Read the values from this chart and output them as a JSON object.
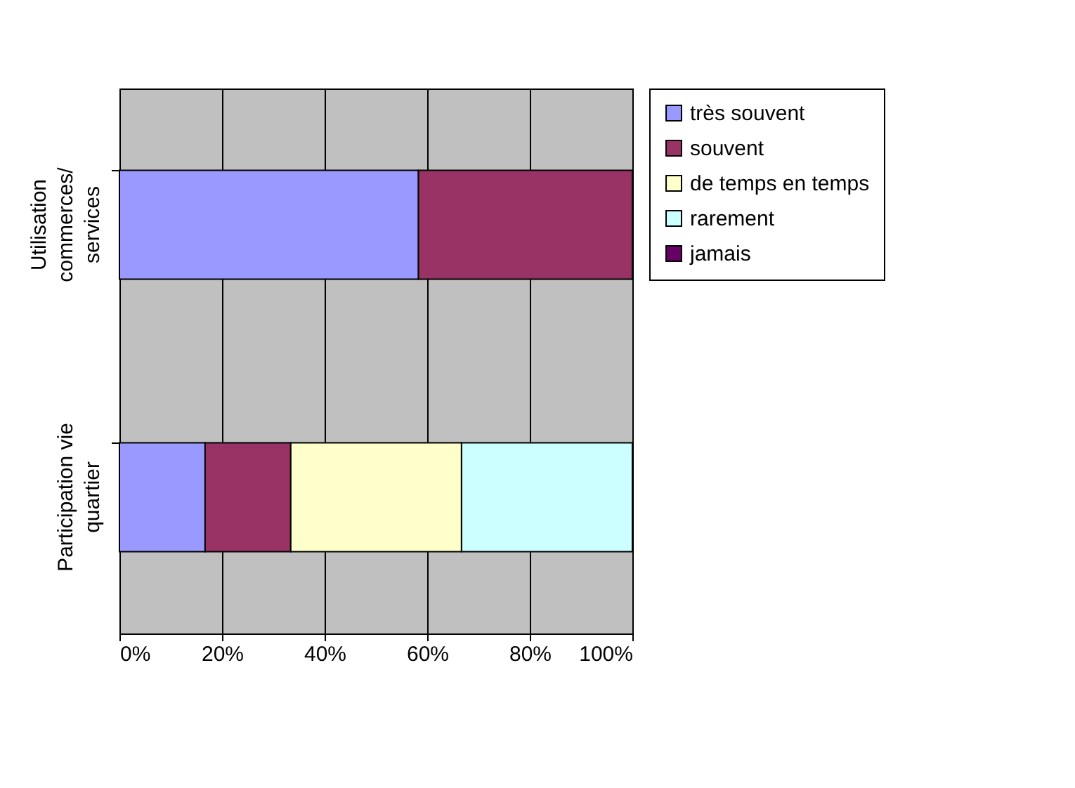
{
  "chart_data": {
    "type": "bar",
    "orientation": "horizontal",
    "stacked": true,
    "categories": [
      "Utilisation\ncommerces/\nservices",
      "Participation vie\nquartier"
    ],
    "series": [
      {
        "name": "très souvent",
        "color": "#9999ff",
        "values": [
          58.3,
          16.7
        ]
      },
      {
        "name": "souvent",
        "color": "#993366",
        "values": [
          41.7,
          16.7
        ]
      },
      {
        "name": "de temps en temps",
        "color": "#ffffcc",
        "values": [
          null,
          33.3
        ]
      },
      {
        "name": "rarement",
        "color": "#ccffff",
        "values": [
          null,
          33.3
        ]
      },
      {
        "name": "jamais",
        "color": "#660066",
        "values": [
          null,
          null
        ]
      }
    ],
    "xlim": [
      0,
      100
    ],
    "xticks": [
      {
        "value": 0,
        "label": "0%"
      },
      {
        "value": 20,
        "label": "20%"
      },
      {
        "value": 40,
        "label": "40%"
      },
      {
        "value": 60,
        "label": "60%"
      },
      {
        "value": 80,
        "label": "80%"
      },
      {
        "value": 100,
        "label": "100%"
      }
    ],
    "grid": "x",
    "legend": "right"
  }
}
